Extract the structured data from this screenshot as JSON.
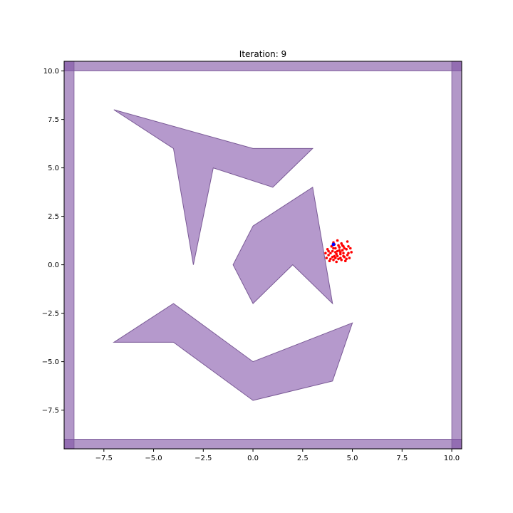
{
  "chart_data": {
    "type": "scatter",
    "title": "Iteration: 9",
    "xlabel": "",
    "ylabel": "",
    "xlim": [
      -9.5,
      10.5
    ],
    "ylim": [
      -9.5,
      10.5
    ],
    "grid": false,
    "x_ticks": [
      -7.5,
      -5.0,
      -2.5,
      0.0,
      2.5,
      5.0,
      7.5,
      10.0
    ],
    "y_ticks": [
      -7.5,
      -5.0,
      -2.5,
      0.0,
      2.5,
      5.0,
      7.5,
      10.0
    ],
    "x_tick_labels": [
      "−7.5",
      "−5.0",
      "−2.5",
      "0.0",
      "2.5",
      "5.0",
      "7.5",
      "10.0"
    ],
    "y_tick_labels": [
      "−7.5",
      "−5.0",
      "−2.5",
      "0.0",
      "2.5",
      "5.0",
      "7.5",
      "10.0"
    ],
    "obstacle_color": "#b599cc",
    "obstacle_edge_color": "#7a5a96",
    "wall_corner_color": "#7f52a4",
    "walls": [
      {
        "x0": -9.5,
        "x1": 10.5,
        "y0": 10.0,
        "y1": 10.5
      },
      {
        "x0": -9.5,
        "x1": 10.5,
        "y0": -9.5,
        "y1": -9.0
      },
      {
        "x0": -9.5,
        "x1": -9.0,
        "y0": -9.5,
        "y1": 10.5
      },
      {
        "x0": 10.0,
        "x1": 10.5,
        "y0": -9.5,
        "y1": 10.5
      }
    ],
    "obstacles": [
      [
        [
          -7,
          8
        ],
        [
          0,
          6
        ],
        [
          3,
          6
        ],
        [
          1,
          4
        ],
        [
          -2,
          5
        ],
        [
          -3,
          0
        ],
        [
          -4,
          6
        ]
      ],
      [
        [
          0,
          2
        ],
        [
          3,
          4
        ],
        [
          4,
          -2
        ],
        [
          2,
          0
        ],
        [
          0,
          -2
        ],
        [
          -1,
          0
        ]
      ],
      [
        [
          -7,
          -4
        ],
        [
          -4,
          -2
        ],
        [
          0,
          -5
        ],
        [
          5,
          -3
        ],
        [
          4,
          -6
        ],
        [
          0,
          -7
        ],
        [
          -4,
          -4
        ]
      ]
    ],
    "particles": {
      "color": "#ff0000",
      "points": [
        [
          4.05,
          1.15
        ],
        [
          4.3,
          1.0
        ],
        [
          4.55,
          0.95
        ],
        [
          4.75,
          1.2
        ],
        [
          4.9,
          0.85
        ],
        [
          3.75,
          0.8
        ],
        [
          3.9,
          0.6
        ],
        [
          4.1,
          0.45
        ],
        [
          4.25,
          0.7
        ],
        [
          4.4,
          0.55
        ],
        [
          4.6,
          0.4
        ],
        [
          4.8,
          0.6
        ],
        [
          3.7,
          0.35
        ],
        [
          3.85,
          0.2
        ],
        [
          4.05,
          0.25
        ],
        [
          4.2,
          0.15
        ],
        [
          4.45,
          0.25
        ],
        [
          4.65,
          0.2
        ],
        [
          4.85,
          0.35
        ],
        [
          3.95,
          0.95
        ],
        [
          4.15,
          0.85
        ],
        [
          4.35,
          0.9
        ],
        [
          4.5,
          0.75
        ],
        [
          4.7,
          0.8
        ],
        [
          3.8,
          0.5
        ],
        [
          4.0,
          0.7
        ],
        [
          4.2,
          0.55
        ],
        [
          4.4,
          0.35
        ],
        [
          4.55,
          0.6
        ],
        [
          4.75,
          0.5
        ],
        [
          4.1,
          1.05
        ],
        [
          4.25,
          1.25
        ],
        [
          4.45,
          1.1
        ],
        [
          3.65,
          0.6
        ],
        [
          4.95,
          0.65
        ],
        [
          4.3,
          0.3
        ],
        [
          4.0,
          0.4
        ],
        [
          4.5,
          1.0
        ],
        [
          4.15,
          0.65
        ],
        [
          4.35,
          0.75
        ],
        [
          3.9,
          0.3
        ],
        [
          4.6,
          0.85
        ],
        [
          4.8,
          0.95
        ],
        [
          4.7,
          0.3
        ],
        [
          4.25,
          0.45
        ],
        [
          4.05,
          0.85
        ],
        [
          3.8,
          0.7
        ],
        [
          4.4,
          0.65
        ],
        [
          4.55,
          0.45
        ],
        [
          4.15,
          0.35
        ]
      ]
    },
    "estimate": {
      "color": "#0000ff",
      "point": [
        4.05,
        1.05
      ]
    }
  }
}
